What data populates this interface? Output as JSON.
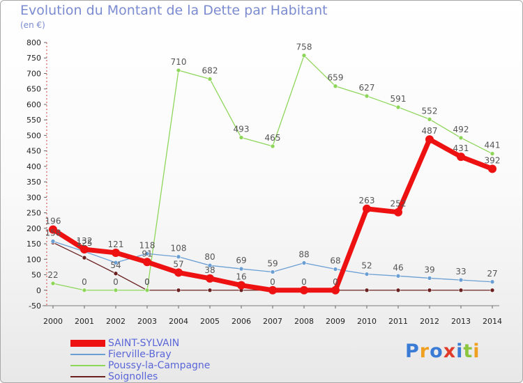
{
  "title": "Evolution du Montant de la Dette par Habitant",
  "subtitle": "(en €)",
  "logo": {
    "text": "Proxiti",
    "letters": [
      {
        "ch": "P",
        "color": "#3a7bd5"
      },
      {
        "ch": "r",
        "color": "#f0a020"
      },
      {
        "ch": "o",
        "color": "#3a7bd5"
      },
      {
        "ch": "x",
        "color": "#e03a2a"
      },
      {
        "ch": "i",
        "color": "#3a7bd5"
      },
      {
        "ch": "t",
        "color": "#8cc63e"
      },
      {
        "ch": "i",
        "color": "#f0a020"
      }
    ]
  },
  "chart_data": {
    "type": "line",
    "title": "Evolution du Montant de la Dette par Habitant",
    "subtitle": "(en €)",
    "x": [
      "2000",
      "2001",
      "2002",
      "2003",
      "2004",
      "2005",
      "2006",
      "2007",
      "2008",
      "2009",
      "2010",
      "2011",
      "2012",
      "2013",
      "2014"
    ],
    "ylim": [
      -50,
      800
    ],
    "yticks": [
      "-50",
      "0",
      "50",
      "100",
      "150",
      "200",
      "250",
      "300",
      "350",
      "400",
      "450",
      "500",
      "550",
      "600",
      "650",
      "700",
      "750",
      "800"
    ],
    "ytick_values": [
      -50,
      0,
      50,
      100,
      150,
      200,
      250,
      300,
      350,
      400,
      450,
      500,
      550,
      600,
      650,
      700,
      750,
      800
    ],
    "grid": false,
    "legend_position": "bottom-left",
    "series": [
      {
        "name": "Soignolles",
        "color": "#6b2020",
        "values": [
          154,
          105,
          54,
          0,
          0,
          0,
          0,
          0,
          0,
          0,
          0,
          0,
          0,
          0,
          0
        ],
        "labels": [
          "",
          "",
          "54",
          "0",
          "",
          "",
          "",
          "",
          "",
          "",
          "",
          "",
          "",
          "",
          ""
        ]
      },
      {
        "name": "Poussy-la-Campagne",
        "color": "#8ed65a",
        "values": [
          22,
          0,
          0,
          0,
          710,
          682,
          493,
          465,
          758,
          659,
          627,
          591,
          552,
          492,
          441
        ],
        "labels": [
          "22",
          "0",
          "0",
          "0",
          "710",
          "682",
          "493",
          "465",
          "758",
          "659",
          "627",
          "591",
          "552",
          "492",
          "441"
        ]
      },
      {
        "name": "Fierville-Bray",
        "color": "#6b9fd4",
        "values": [
          158,
          125,
          89,
          118,
          108,
          80,
          69,
          59,
          88,
          68,
          52,
          46,
          39,
          33,
          27
        ],
        "labels": [
          "158",
          "125",
          "",
          "118",
          "108",
          "80",
          "69",
          "59",
          "88",
          "68",
          "52",
          "46",
          "39",
          "33",
          "27"
        ]
      },
      {
        "name": "SAINT-SYLVAIN",
        "color": "#ee1111",
        "values": [
          196,
          132,
          121,
          91,
          57,
          38,
          16,
          0,
          0,
          0,
          263,
          252,
          487,
          431,
          392
        ],
        "labels": [
          "196",
          "132",
          "121",
          "91",
          "57",
          "38",
          "16",
          "0",
          "0",
          "0",
          "263",
          "252",
          "487",
          "431",
          "392"
        ]
      }
    ],
    "legend": [
      {
        "name": "SAINT-SYLVAIN",
        "color": "#ee1111"
      },
      {
        "name": "Fierville-Bray",
        "color": "#6b9fd4"
      },
      {
        "name": "Poussy-la-Campagne",
        "color": "#8ed65a"
      },
      {
        "name": "Soignolles",
        "color": "#6b2020"
      }
    ]
  }
}
